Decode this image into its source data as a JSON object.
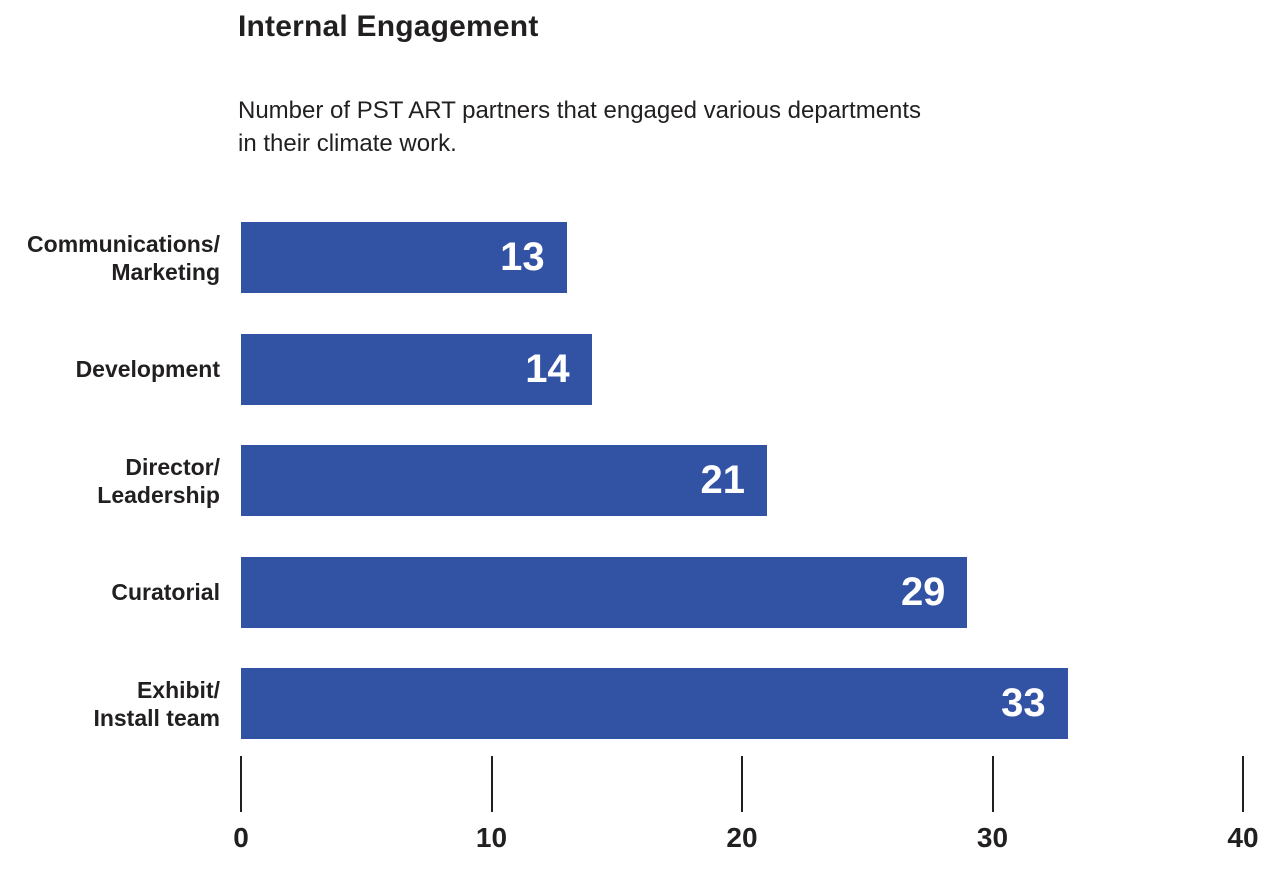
{
  "chart": {
    "title": "Internal Engagement",
    "subtitle_lines": [
      "Number of PST ART partners that engaged various departments",
      "in their climate work."
    ],
    "colors": {
      "bar": "#3252a4",
      "text": "#221f20",
      "value_label": "#ffffff",
      "background": "#ffffff",
      "tick": "#221f20"
    }
  },
  "chart_data": {
    "type": "bar",
    "orientation": "horizontal",
    "title": "Internal Engagement",
    "subtitle": "Number of PST ART partners that engaged various departments in their climate work.",
    "categories": [
      "Communications/Marketing",
      "Development",
      "Director/Leadership",
      "Curatorial",
      "Exhibit/Install team"
    ],
    "category_label_lines": [
      [
        "Communications/",
        "Marketing"
      ],
      [
        "Development"
      ],
      [
        "Director/",
        "Leadership"
      ],
      [
        "Curatorial"
      ],
      [
        "Exhibit/",
        "Install team"
      ]
    ],
    "values": [
      13,
      14,
      21,
      29,
      33
    ],
    "value_label_position": "inside-end",
    "xlabel": "",
    "ylabel": "",
    "xlim": [
      0,
      40
    ],
    "xticks": [
      0,
      10,
      20,
      30,
      40
    ],
    "grid": false,
    "legend": false
  }
}
